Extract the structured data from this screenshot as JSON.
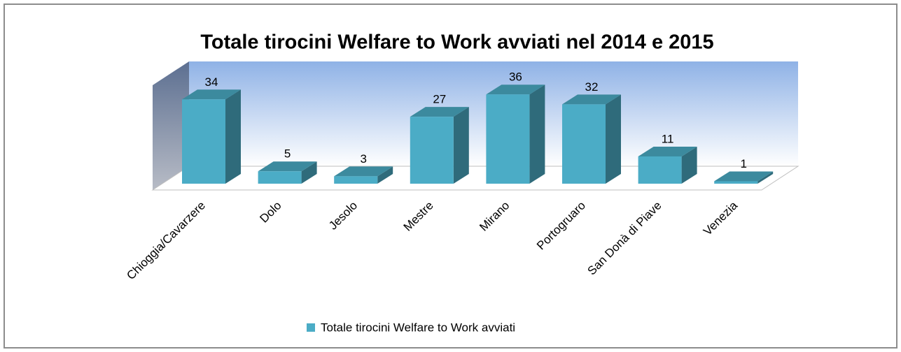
{
  "chart_data": {
    "type": "bar3d",
    "title": "Totale tirocini Welfare to Work avviati nel 2014 e 2015",
    "categories": [
      "Chioggia/Cavarzere",
      "Dolo",
      "Jesolo",
      "Mestre",
      "Mirano",
      "Portogruaro",
      "San Donà di Piave",
      "Venezia"
    ],
    "series": [
      {
        "name": "Totale tirocini Welfare to Work avviati",
        "color": "#4bacc6",
        "values": [
          34,
          5,
          3,
          27,
          36,
          32,
          11,
          1
        ]
      }
    ],
    "legend": "bottom"
  }
}
